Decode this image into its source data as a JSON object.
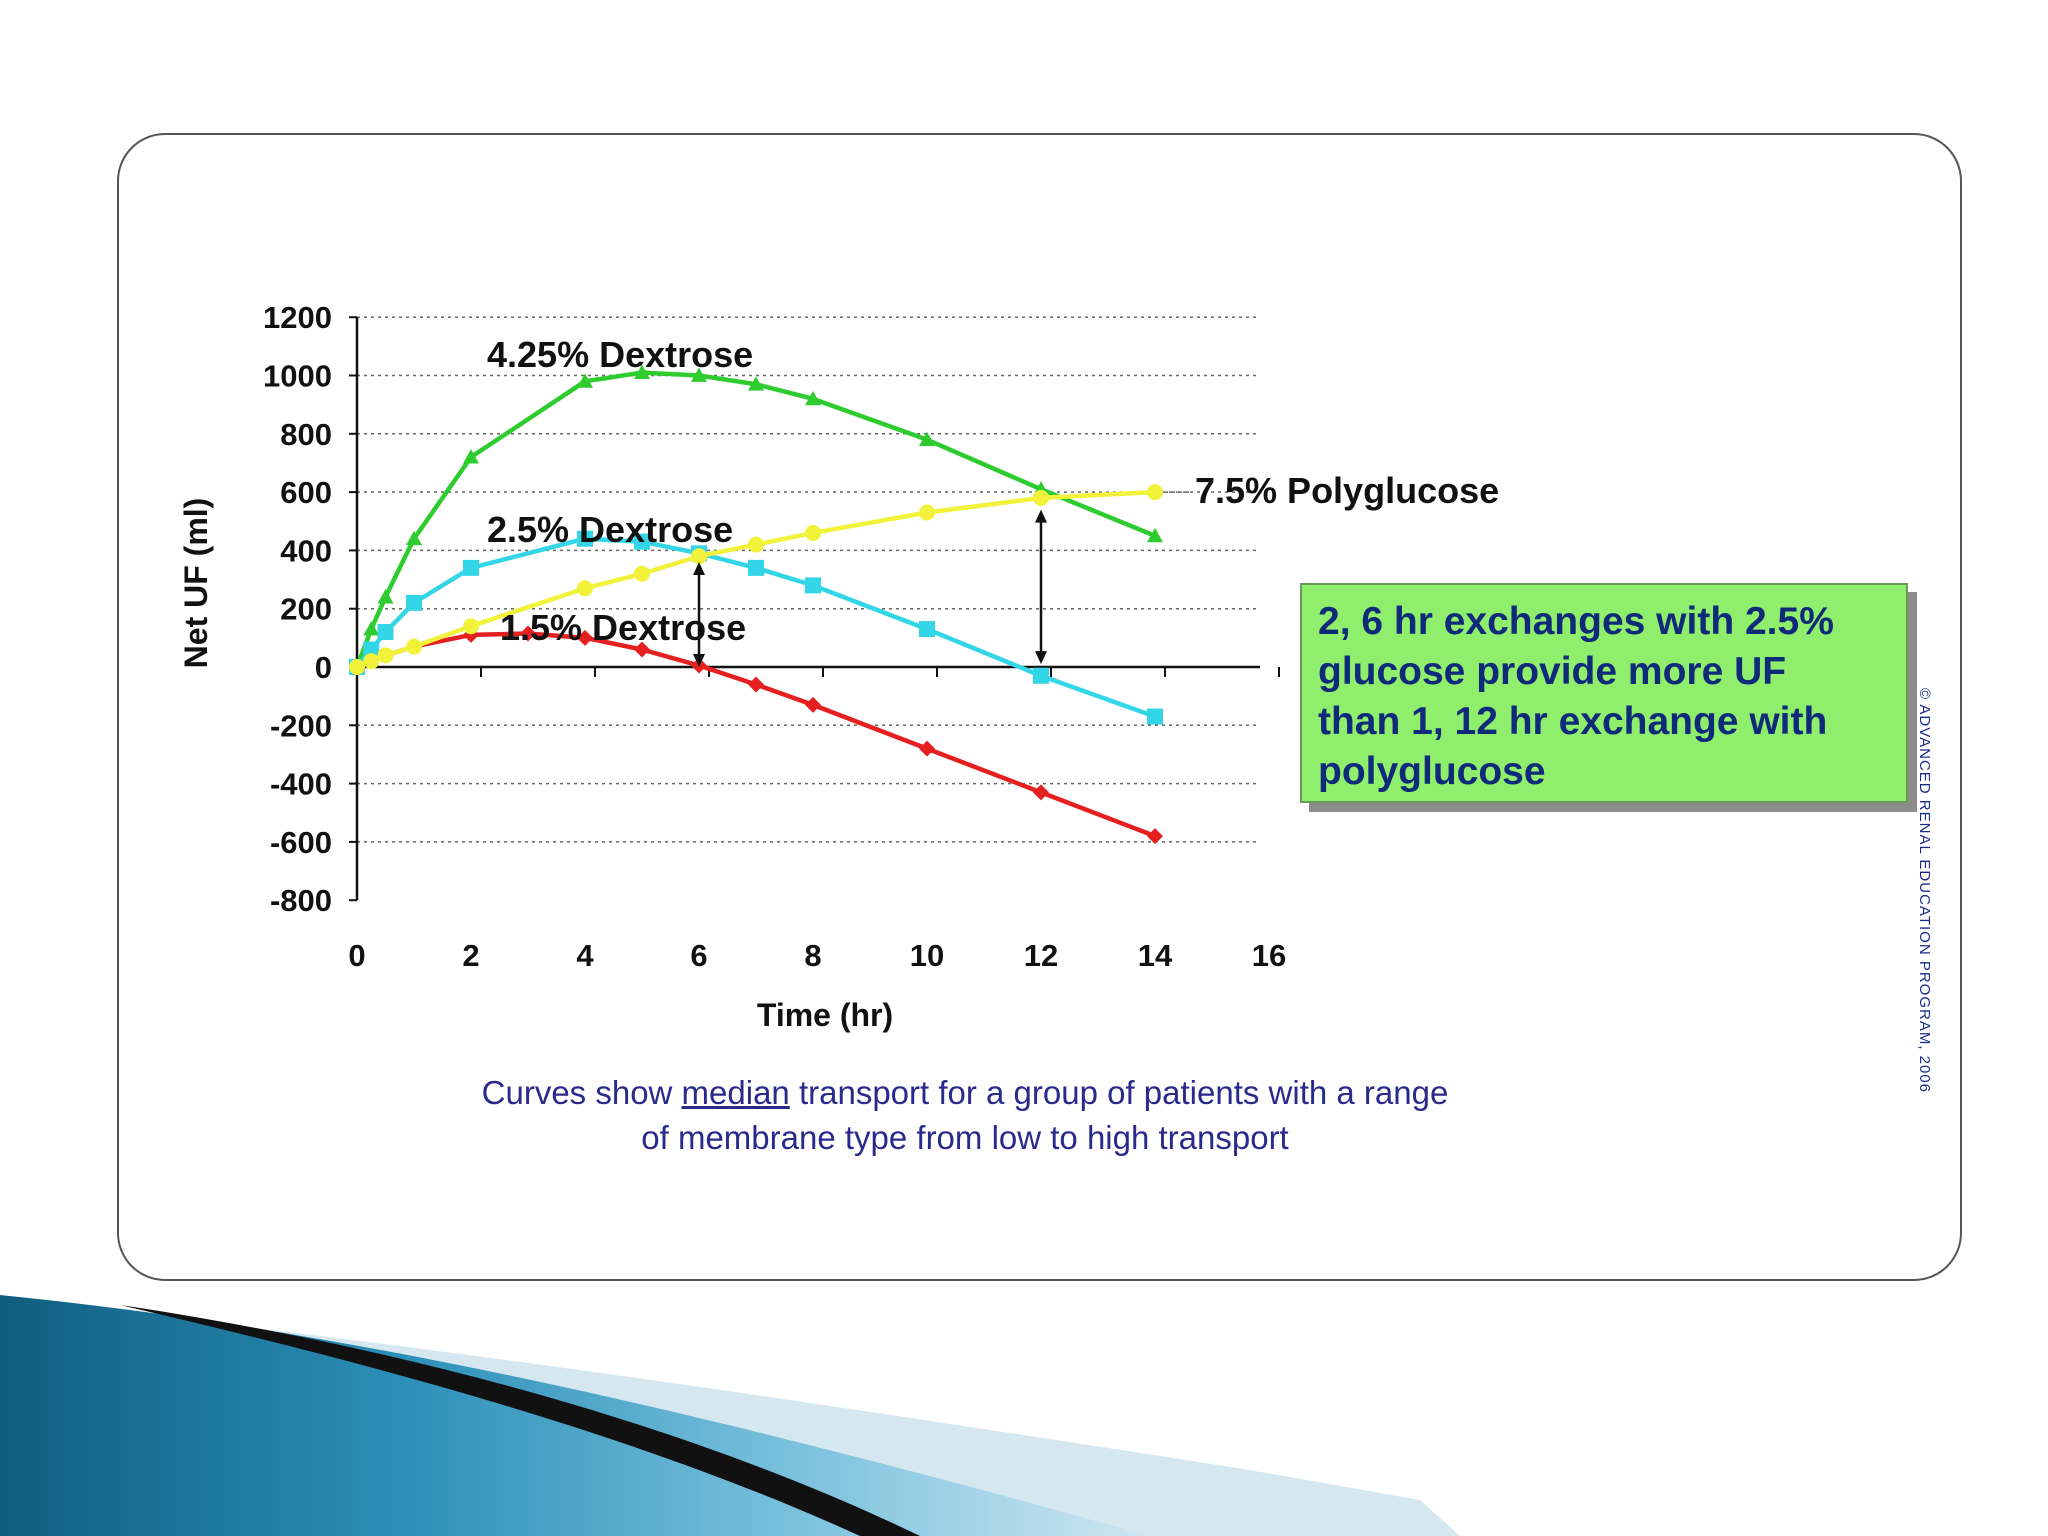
{
  "chart_data": {
    "type": "line",
    "xlabel": "Time (hr)",
    "ylabel": "Net UF (ml)",
    "xlim": [
      0,
      16
    ],
    "ylim": [
      -800,
      1200
    ],
    "x_ticks": [
      0,
      2,
      4,
      6,
      8,
      10,
      12,
      14,
      16
    ],
    "y_ticks": [
      1200,
      1000,
      800,
      600,
      400,
      200,
      0,
      -200,
      -400,
      -600,
      -800
    ],
    "grid": "horizontal dotted",
    "series": [
      {
        "name": "4.25% Dextrose",
        "color": "#2ecc2e",
        "marker": "triangle",
        "x": [
          0,
          0.25,
          0.5,
          1,
          2,
          4,
          5,
          6,
          7,
          8,
          10,
          12,
          14
        ],
        "y": [
          0,
          130,
          240,
          440,
          720,
          980,
          1010,
          1000,
          970,
          920,
          780,
          610,
          450
        ]
      },
      {
        "name": "2.5% Dextrose",
        "color": "#33d6e6",
        "marker": "square",
        "x": [
          0,
          0.25,
          0.5,
          1,
          2,
          4,
          5,
          6,
          7,
          8,
          10,
          12,
          14
        ],
        "y": [
          0,
          60,
          120,
          220,
          340,
          440,
          430,
          390,
          340,
          280,
          130,
          -30,
          -170
        ]
      },
      {
        "name": "1.5% Dextrose",
        "color": "#e62020",
        "marker": "diamond",
        "x": [
          0,
          0.25,
          0.5,
          1,
          2,
          3,
          4,
          5,
          6,
          7,
          8,
          10,
          12,
          14
        ],
        "y": [
          0,
          20,
          40,
          70,
          110,
          115,
          100,
          60,
          5,
          -60,
          -130,
          -280,
          -430,
          -580
        ]
      },
      {
        "name": "7.5% Polyglucose",
        "color": "#f2f23a",
        "marker": "circle",
        "x": [
          0,
          0.25,
          0.5,
          1,
          2,
          4,
          5,
          6,
          7,
          8,
          10,
          12,
          14
        ],
        "y": [
          0,
          20,
          40,
          70,
          140,
          270,
          320,
          380,
          420,
          460,
          530,
          580,
          600
        ]
      }
    ],
    "annotations": [
      "4.25% Dextrose",
      "7.5% Polyglucose",
      "2.5% Dextrose",
      "1.5% Dextrose"
    ]
  },
  "callout": {
    "lines": [
      "2, 6 hr exchanges with 2.5%",
      "glucose provide more UF",
      "than 1, 12 hr exchange with",
      "polyglucose"
    ]
  },
  "caption": {
    "pre": "Curves show ",
    "underlined": "median",
    "post": " transport for a group of patients with a range",
    "line2": "of membrane type from low to high transport"
  },
  "copyright": "© ADVANCED RENAL EDUCATION PROGRAM, 2006",
  "colors": {
    "card_border": "#555555",
    "callout_bg": "#8fee6c",
    "caption_text": "#2a2a8c",
    "deco_blue": "#1d6f94"
  }
}
